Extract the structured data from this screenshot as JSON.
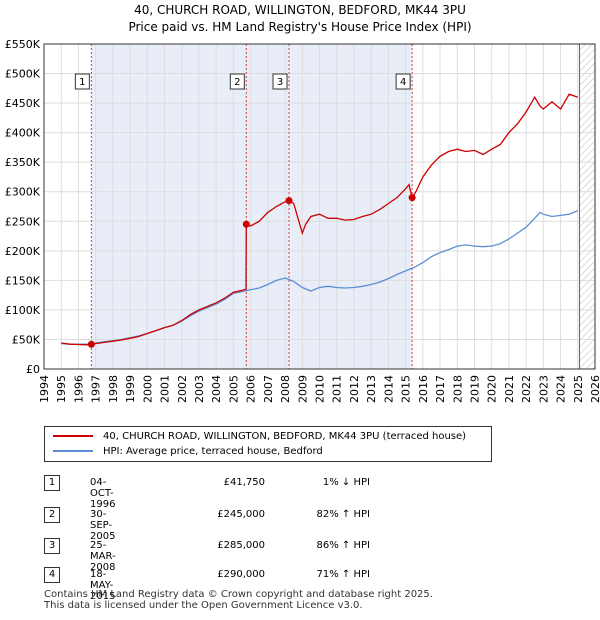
{
  "title_line1": "40, CHURCH ROAD, WILLINGTON, BEDFORD, MK44 3PU",
  "title_line2": "Price paid vs. HM Land Registry's House Price Index (HPI)",
  "colors": {
    "price": "#cc0000",
    "hpi": "#5b8fd4",
    "shade": "#e8edf8",
    "grid": "#dddddd",
    "vline": "#cc4444"
  },
  "chart_data": {
    "type": "line",
    "title": "Price paid vs. HM Land Registry's House Price Index (HPI)",
    "xlabel": "",
    "ylabel": "",
    "xlim": [
      1994,
      2026
    ],
    "ylim": [
      0,
      550000
    ],
    "y_ticks": [
      0,
      50000,
      100000,
      150000,
      200000,
      250000,
      300000,
      350000,
      400000,
      450000,
      500000,
      550000
    ],
    "y_tick_labels": [
      "£0",
      "£50K",
      "£100K",
      "£150K",
      "£200K",
      "£250K",
      "£300K",
      "£350K",
      "£400K",
      "£450K",
      "£500K",
      "£550K"
    ],
    "x_ticks": [
      1994,
      1995,
      1996,
      1997,
      1998,
      1999,
      2000,
      2001,
      2002,
      2003,
      2004,
      2005,
      2006,
      2007,
      2008,
      2009,
      2010,
      2011,
      2012,
      2013,
      2014,
      2015,
      2016,
      2017,
      2018,
      2019,
      2020,
      2021,
      2022,
      2023,
      2024,
      2025,
      2026
    ],
    "x_tick_labels": [
      "1994",
      "1995",
      "1996",
      "1997",
      "1998",
      "1999",
      "2000",
      "2001",
      "2002",
      "2003",
      "2004",
      "2005",
      "2006",
      "2007",
      "2008",
      "2009",
      "2010",
      "2011",
      "2012",
      "2013",
      "2014",
      "2015",
      "2016",
      "2017",
      "2018",
      "2019",
      "2020",
      "2021",
      "2022",
      "2023",
      "2024",
      "2025",
      "2026"
    ],
    "shaded_range": [
      1996.75,
      2015.38
    ],
    "future_hatch_from": 2025.1,
    "series": [
      {
        "name": "40, CHURCH ROAD, WILLINGTON, BEDFORD, MK44 3PU (terraced house)",
        "x": [
          1995.0,
          1995.5,
          1996.0,
          1996.5,
          1996.75,
          1997.0,
          1997.5,
          1998.0,
          1998.5,
          1999.0,
          1999.5,
          2000.0,
          2000.5,
          2001.0,
          2001.5,
          2002.0,
          2002.5,
          2003.0,
          2003.5,
          2004.0,
          2004.5,
          2005.0,
          2005.5,
          2005.73,
          2005.75,
          2006.0,
          2006.5,
          2007.0,
          2007.5,
          2008.0,
          2008.23,
          2008.5,
          2008.75,
          2009.0,
          2009.2,
          2009.5,
          2010.0,
          2010.5,
          2011.0,
          2011.5,
          2012.0,
          2012.5,
          2013.0,
          2013.5,
          2014.0,
          2014.5,
          2015.0,
          2015.2,
          2015.38,
          2015.6,
          2016.0,
          2016.5,
          2017.0,
          2017.5,
          2018.0,
          2018.5,
          2019.0,
          2019.5,
          2020.0,
          2020.5,
          2021.0,
          2021.5,
          2022.0,
          2022.5,
          2022.8,
          2023.0,
          2023.5,
          2024.0,
          2024.5,
          2025.0
        ],
        "values": [
          44000,
          42000,
          41500,
          41000,
          41750,
          43000,
          45000,
          47000,
          49000,
          52000,
          55000,
          60000,
          65000,
          70000,
          74000,
          82000,
          92000,
          100000,
          106000,
          112000,
          120000,
          130000,
          133000,
          135000,
          245000,
          242000,
          250000,
          265000,
          275000,
          283000,
          285000,
          280000,
          255000,
          230000,
          245000,
          258000,
          262000,
          255000,
          255000,
          252000,
          253000,
          258000,
          262000,
          270000,
          280000,
          290000,
          305000,
          312000,
          290000,
          300000,
          325000,
          345000,
          360000,
          368000,
          372000,
          368000,
          370000,
          363000,
          372000,
          380000,
          400000,
          415000,
          435000,
          460000,
          445000,
          440000,
          452000,
          440000,
          465000,
          460000
        ]
      },
      {
        "name": "HPI: Average price, terraced house, Bedford",
        "x": [
          1995.0,
          1995.5,
          1996.0,
          1996.5,
          1996.75,
          1997.0,
          1997.5,
          1998.0,
          1998.5,
          1999.0,
          1999.5,
          2000.0,
          2000.5,
          2001.0,
          2001.5,
          2002.0,
          2002.5,
          2003.0,
          2003.5,
          2004.0,
          2004.5,
          2005.0,
          2005.5,
          2006.0,
          2006.5,
          2007.0,
          2007.5,
          2008.0,
          2008.5,
          2009.0,
          2009.5,
          2010.0,
          2010.5,
          2011.0,
          2011.5,
          2012.0,
          2012.5,
          2013.0,
          2013.5,
          2014.0,
          2014.5,
          2015.0,
          2015.5,
          2016.0,
          2016.5,
          2017.0,
          2017.5,
          2018.0,
          2018.5,
          2019.0,
          2019.5,
          2020.0,
          2020.5,
          2021.0,
          2021.5,
          2022.0,
          2022.5,
          2022.8,
          2023.0,
          2023.5,
          2024.0,
          2024.5,
          2025.0
        ],
        "values": [
          43000,
          42000,
          42000,
          42000,
          42200,
          44000,
          46000,
          48000,
          50000,
          53000,
          56000,
          60000,
          65000,
          70000,
          74000,
          81000,
          90000,
          98000,
          104000,
          110000,
          118000,
          128000,
          131000,
          134000,
          137000,
          143000,
          150000,
          154000,
          148000,
          138000,
          132000,
          138000,
          140000,
          138000,
          137000,
          138000,
          140000,
          143000,
          147000,
          153000,
          160000,
          166000,
          172000,
          180000,
          190000,
          197000,
          202000,
          208000,
          210000,
          208000,
          207000,
          208000,
          212000,
          220000,
          230000,
          240000,
          255000,
          265000,
          262000,
          258000,
          260000,
          262000,
          268000
        ]
      }
    ],
    "transactions": [
      {
        "num": "1",
        "x": 1996.75,
        "price": 41750
      },
      {
        "num": "2",
        "x": 2005.75,
        "price": 245000
      },
      {
        "num": "3",
        "x": 2008.23,
        "price": 285000
      },
      {
        "num": "4",
        "x": 2015.38,
        "price": 290000
      }
    ]
  },
  "legend": {
    "price_label": "40, CHURCH ROAD, WILLINGTON, BEDFORD, MK44 3PU (terraced house)",
    "hpi_label": "HPI: Average price, terraced house, Bedford"
  },
  "table": [
    {
      "num": "1",
      "date": "04-OCT-1996",
      "price": "£41,750",
      "hpi": "1% ↓ HPI"
    },
    {
      "num": "2",
      "date": "30-SEP-2005",
      "price": "£245,000",
      "hpi": "82% ↑ HPI"
    },
    {
      "num": "3",
      "date": "25-MAR-2008",
      "price": "£285,000",
      "hpi": "86% ↑ HPI"
    },
    {
      "num": "4",
      "date": "18-MAY-2015",
      "price": "£290,000",
      "hpi": "71% ↑ HPI"
    }
  ],
  "footer_line1": "Contains HM Land Registry data © Crown copyright and database right 2025.",
  "footer_line2": "This data is licensed under the Open Government Licence v3.0."
}
